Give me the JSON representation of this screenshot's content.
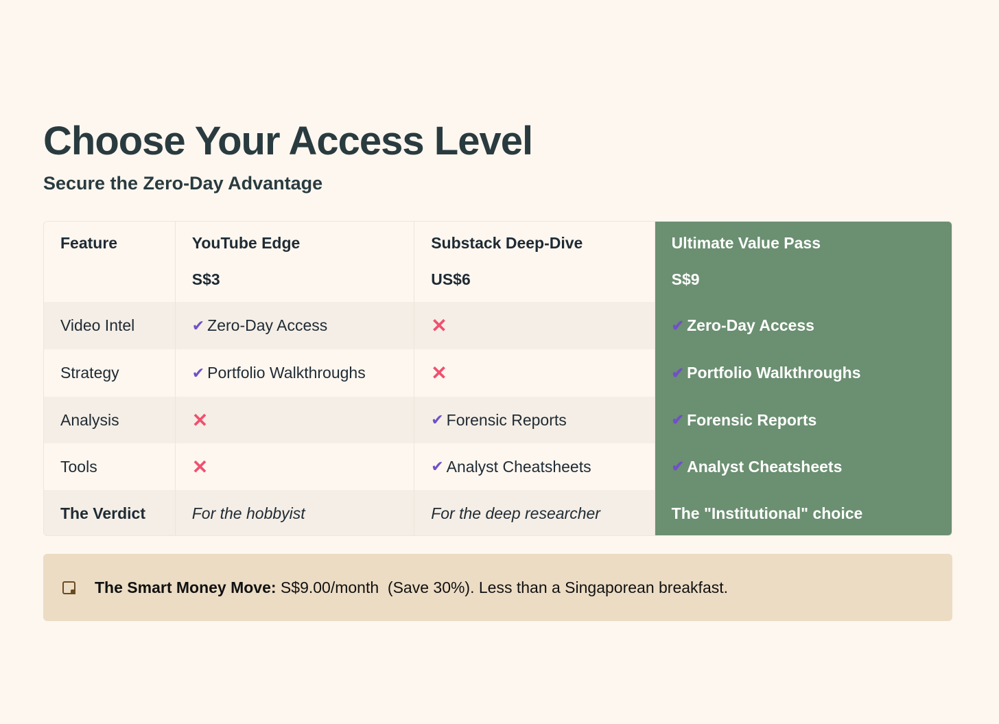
{
  "title": "Choose Your Access Level",
  "subtitle": "Secure the Zero-Day Advantage",
  "table": {
    "headers": [
      {
        "name": "Feature",
        "price": ""
      },
      {
        "name": "YouTube Edge",
        "price": "S$3"
      },
      {
        "name": "Substack Deep-Dive",
        "price": "US$6"
      },
      {
        "name": "Ultimate Value Pass",
        "price": "S$9"
      }
    ],
    "rows": [
      {
        "feature": "Video Intel",
        "cells": [
          {
            "type": "check",
            "text": "Zero-Day Access"
          },
          {
            "type": "cross",
            "text": ""
          },
          {
            "type": "check",
            "text": "Zero-Day Access"
          }
        ]
      },
      {
        "feature": "Strategy",
        "cells": [
          {
            "type": "check",
            "text": "Portfolio Walkthroughs"
          },
          {
            "type": "cross",
            "text": ""
          },
          {
            "type": "check",
            "text": "Portfolio Walkthroughs"
          }
        ]
      },
      {
        "feature": "Analysis",
        "cells": [
          {
            "type": "cross",
            "text": ""
          },
          {
            "type": "check",
            "text": "Forensic Reports"
          },
          {
            "type": "check",
            "text": "Forensic Reports"
          }
        ]
      },
      {
        "feature": "Tools",
        "cells": [
          {
            "type": "cross",
            "text": ""
          },
          {
            "type": "check",
            "text": "Analyst Cheatsheets"
          },
          {
            "type": "check",
            "text": "Analyst Cheatsheets"
          }
        ]
      }
    ],
    "verdict": {
      "label": "The Verdict",
      "values": [
        "For the hobbyist",
        "For the deep researcher",
        "The \"Institutional\" choice"
      ]
    }
  },
  "callout": {
    "icon": "note-icon",
    "bold": "The Smart Money Move:",
    "text": " S$9.00/month  (Save 30%). Less than a Singaporean breakfast."
  },
  "colors": {
    "highlight": "#6b8f71",
    "check": "#7050c8",
    "cross": "#f0506e",
    "callout_bg": "#ecdcc4"
  }
}
